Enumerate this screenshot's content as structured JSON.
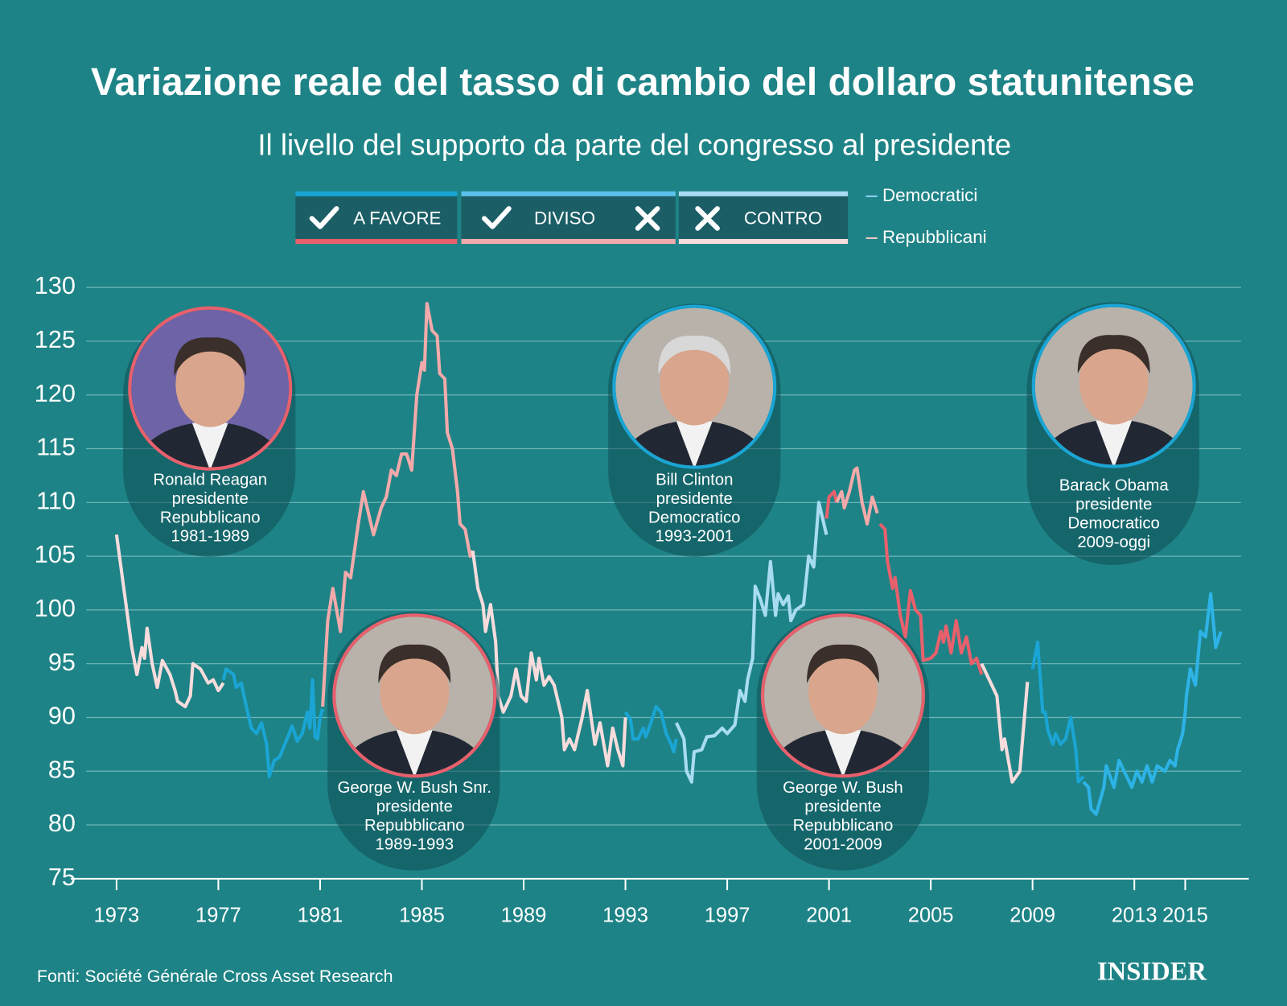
{
  "chart_data": {
    "type": "line",
    "title": "Variazione reale del tasso di cambio del dollaro statunitense",
    "subtitle": "Il livello del supporto da parte del congresso al presidente",
    "xlim": [
      1971.2,
      2017.5
    ],
    "xticks": [
      1973,
      1977,
      1981,
      1985,
      1989,
      1993,
      1997,
      2001,
      2005,
      2009,
      2013,
      2015
    ],
    "ylim": [
      75,
      130
    ],
    "yticks": [
      75,
      80,
      85,
      90,
      95,
      100,
      105,
      110,
      115,
      120,
      125,
      130
    ],
    "grid": true,
    "series": [
      {
        "color": "#f8dcdc",
        "x": [
          1973.0,
          1973.4,
          1973.6,
          1973.8,
          1974.0,
          1974.1,
          1974.2,
          1974.4,
          1974.6,
          1974.8,
          1975.1,
          1975.3,
          1975.4,
          1975.7,
          1975.9,
          1976.0,
          1976.3,
          1976.6,
          1976.8,
          1977.0,
          1977.2
        ],
        "values": [
          107,
          100,
          96.5,
          94,
          96.5,
          95.5,
          98.3,
          95,
          92.8,
          95.3,
          94,
          92.5,
          91.5,
          91,
          92,
          95,
          94.5,
          93.2,
          93.5,
          92.5,
          93.2
        ]
      },
      {
        "color": "#1aa5d4",
        "x": [
          1977.2,
          1977.3,
          1977.6,
          1977.7,
          1977.9,
          1978.1,
          1978.3,
          1978.5,
          1978.7,
          1978.9,
          1979.0,
          1979.2,
          1979.4,
          1979.7,
          1979.9,
          1980.1,
          1980.3,
          1980.5,
          1980.6,
          1980.7,
          1980.8,
          1980.9,
          1981.0,
          1981.1
        ],
        "values": [
          93.5,
          94.5,
          94,
          92.8,
          93.2,
          91,
          89,
          88.5,
          89.5,
          87.5,
          84.5,
          86,
          86.3,
          88,
          89.2,
          87.8,
          88.5,
          90.5,
          89,
          93.5,
          88.2,
          88,
          90,
          90.8
        ]
      },
      {
        "color": "#f2aaaa",
        "x": [
          1981.1,
          1981.3,
          1981.5,
          1981.8,
          1982.0,
          1982.2,
          1982.5,
          1982.7,
          1982.9,
          1983.1,
          1983.4,
          1983.6,
          1983.8,
          1984.0,
          1984.2,
          1984.4,
          1984.6,
          1984.8,
          1985.0,
          1985.1,
          1985.2,
          1985.4,
          1985.6,
          1985.7,
          1985.9,
          1986.0,
          1986.2,
          1986.4,
          1986.5,
          1986.7,
          1986.9,
          1987.0
        ],
        "values": [
          91,
          99,
          102,
          98,
          103.5,
          103,
          108,
          111,
          109,
          107,
          109.5,
          110.5,
          113,
          112.5,
          114.5,
          114.5,
          113,
          120,
          123,
          122.3,
          128.5,
          126,
          125.5,
          122,
          121.5,
          116.5,
          115,
          111,
          108,
          107.5,
          105,
          105.5
        ]
      },
      {
        "color": "#f8dcdc",
        "x": [
          1987.0,
          1987.2,
          1987.4,
          1987.5,
          1987.7,
          1987.9,
          1988.0,
          1988.2,
          1988.5,
          1988.7,
          1988.9,
          1989.1,
          1989.3,
          1989.5,
          1989.6,
          1989.8,
          1990.0,
          1990.2,
          1990.5,
          1990.6,
          1990.8,
          1991.0,
          1991.3,
          1991.5,
          1991.8,
          1992.0,
          1992.3,
          1992.5,
          1992.7,
          1992.9,
          1993.0
        ],
        "values": [
          105.5,
          102,
          100.5,
          98,
          100.5,
          97,
          92,
          90.5,
          92,
          94.5,
          92,
          91.5,
          96,
          93.5,
          95.5,
          93,
          93.8,
          93,
          90,
          87,
          88,
          87,
          90,
          92.5,
          87.5,
          89.5,
          85.5,
          89,
          87,
          85.5,
          90
        ]
      },
      {
        "color": "#1aa5d4",
        "x": [
          1993.0,
          1993.2,
          1993.3,
          1993.5,
          1993.7,
          1993.8,
          1994.0,
          1994.2,
          1994.4,
          1994.6,
          1994.8,
          1994.9,
          1995.0
        ],
        "values": [
          90.5,
          89.8,
          88,
          88,
          89,
          88.2,
          89.5,
          91,
          90.5,
          88.5,
          87.5,
          86.8,
          88
        ]
      },
      {
        "color": "#a8dcf3",
        "x": [
          1995.0,
          1995.3,
          1995.4,
          1995.6,
          1995.7,
          1996.0,
          1996.2,
          1996.5,
          1996.8,
          1997.0,
          1997.3,
          1997.5,
          1997.7,
          1997.8,
          1998.0,
          1998.1,
          1998.3,
          1998.5,
          1998.7,
          1998.9,
          1999.0,
          1999.2,
          1999.4,
          1999.5,
          1999.7,
          2000.0,
          2000.2,
          2000.4,
          2000.6,
          2000.8,
          2000.9
        ],
        "values": [
          89.5,
          88,
          85,
          84,
          86.8,
          87,
          88.2,
          88.3,
          89,
          88.5,
          89.3,
          92.5,
          91.5,
          93.5,
          95.5,
          102.2,
          101,
          99.5,
          104.5,
          99.5,
          101.5,
          100.5,
          101.3,
          99,
          100,
          100.5,
          105,
          104,
          110,
          108,
          107
        ]
      },
      {
        "color": "#e8606c",
        "x": [
          2000.9,
          2001.0,
          2001.2,
          2001.3
        ],
        "values": [
          108.5,
          110.5,
          111,
          110
        ]
      },
      {
        "color": "#f2aaaa",
        "x": [
          2001.3,
          2001.5,
          2001.6,
          2001.8,
          2002.0,
          2002.1,
          2002.3,
          2002.5,
          2002.7,
          2002.9
        ],
        "values": [
          110,
          111,
          109.5,
          111,
          113,
          113.2,
          110,
          108,
          110.5,
          109
        ]
      },
      {
        "color": "#e8606c",
        "x": [
          2003.0,
          2003.2,
          2003.3,
          2003.5,
          2003.6,
          2003.8,
          2004.0,
          2004.2,
          2004.4,
          2004.6,
          2004.7,
          2005.0,
          2005.2,
          2005.4,
          2005.5,
          2005.6,
          2005.8,
          2006.0,
          2006.2,
          2006.4,
          2006.6,
          2006.8,
          2007.0
        ],
        "values": [
          108,
          107.5,
          104.5,
          102,
          103,
          99.5,
          97.5,
          101.8,
          100,
          99.5,
          95.3,
          95.5,
          96,
          98,
          97,
          98.5,
          96,
          99,
          96,
          97.5,
          95,
          95.5,
          94
        ]
      },
      {
        "color": "#f8dcdc",
        "x": [
          2007.0,
          2007.3,
          2007.6,
          2007.8,
          2007.9,
          2008.2,
          2008.5,
          2008.8
        ],
        "values": [
          95,
          93.5,
          92,
          87,
          88,
          84,
          85,
          93.3
        ]
      },
      {
        "color": "#1aa5d4",
        "x": [
          2009.0,
          2009.2,
          2009.4,
          2009.5,
          2009.6,
          2009.8,
          2009.9,
          2010.1,
          2010.3,
          2010.5,
          2010.7,
          2010.8,
          2011.0
        ],
        "values": [
          94.5,
          97,
          90.5,
          90.5,
          88.8,
          87.5,
          88.5,
          87.5,
          88,
          90,
          87,
          84,
          84.5
        ]
      },
      {
        "color": "#2db3e6",
        "x": [
          2011.0,
          2011.2,
          2011.3,
          2011.5,
          2011.8,
          2011.9,
          2012.2,
          2012.4,
          2012.7,
          2012.9,
          2013.1,
          2013.3,
          2013.5,
          2013.7,
          2013.9,
          2014.2,
          2014.4,
          2014.6,
          2014.7,
          2014.9,
          2015.0,
          2015.05,
          2015.2,
          2015.4,
          2015.6,
          2015.8,
          2016.0,
          2016.2,
          2016.4
        ],
        "values": [
          84,
          83.5,
          81.5,
          81,
          83.5,
          85.5,
          83.5,
          86,
          84.5,
          83.5,
          85,
          84,
          85.5,
          84,
          85.5,
          85,
          86,
          85.5,
          87,
          88.5,
          90.5,
          92,
          94.5,
          93,
          98,
          97.5,
          101.5,
          96.5,
          98
        ]
      }
    ],
    "legend": {
      "support": [
        "A FAVORE",
        "DIVISO",
        "CONTRO"
      ],
      "parties": [
        {
          "name": "Democratici",
          "colors": [
            "#1aa5d4",
            "#5cc0ea",
            "#a8dcf3"
          ],
          "text_color": "#8fd2f0"
        },
        {
          "name": "Repubblicani",
          "colors": [
            "#e8606c",
            "#f2aaaa",
            "#f8dcdc"
          ],
          "text_color": "#f6c8c8"
        }
      ]
    },
    "presidents": [
      {
        "name": "Ronald Reagan",
        "role": "presidente",
        "party": "Repubblicano",
        "years": "1981-1989",
        "color": "#e8606c"
      },
      {
        "name": "George W. Bush Snr.",
        "role": "presidente",
        "party": "Repubblicano",
        "years": "1989-1993",
        "color": "#e8606c"
      },
      {
        "name": "Bill Clinton",
        "role": "presidente",
        "party": "Democratico",
        "years": "1993-2001",
        "color": "#1aa5d4"
      },
      {
        "name": "George W. Bush",
        "role": "presidente",
        "party": "Repubblicano",
        "years": "2001-2009",
        "color": "#e8606c"
      },
      {
        "name": "Barack Obama",
        "role": "presidente",
        "party": "Democratico",
        "years": "2009-oggi",
        "color": "#1aa5d4"
      }
    ],
    "source": "Fonti: Société Générale Cross Asset Research",
    "logo": "INSIDER"
  }
}
